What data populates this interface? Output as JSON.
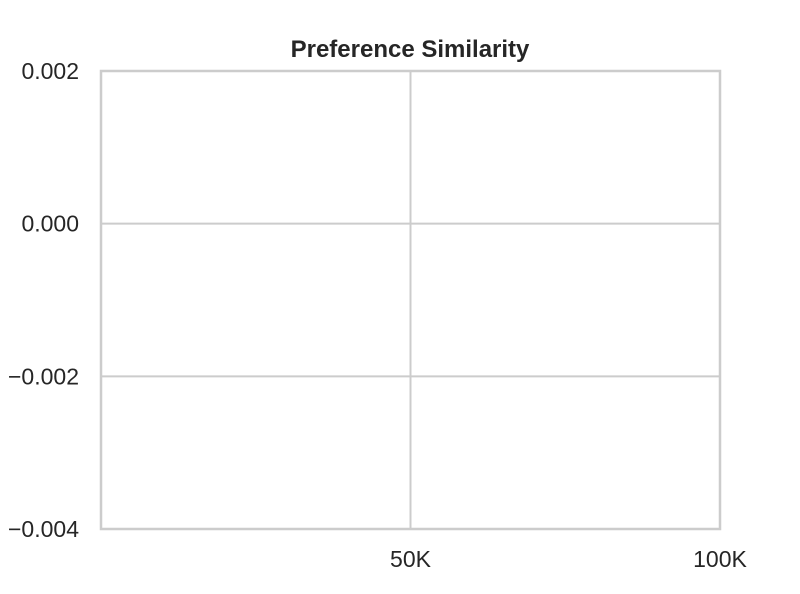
{
  "chart_data": {
    "type": "line",
    "title": "Preference Similarity",
    "xlabel": "",
    "ylabel": "",
    "xlim": [
      0,
      100000
    ],
    "ylim": [
      -0.004,
      0.002
    ],
    "x_ticks": [
      {
        "value": 50000,
        "label": "50K"
      },
      {
        "value": 100000,
        "label": "100K"
      }
    ],
    "y_ticks": [
      {
        "value": 0.002,
        "label": "0.002"
      },
      {
        "value": 0.0,
        "label": "0.000"
      },
      {
        "value": -0.002,
        "label": "−0.002"
      },
      {
        "value": -0.004,
        "label": "−0.004"
      }
    ],
    "grid": true,
    "series": [],
    "colors": {
      "grid": "#cccccc",
      "text": "#262626",
      "background": "#ffffff"
    }
  }
}
